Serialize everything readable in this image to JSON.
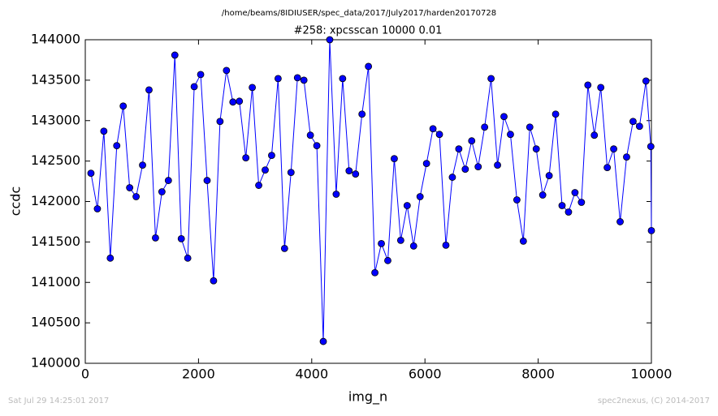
{
  "chart_data": {
    "type": "line",
    "title": "/home/beams/8IDIUSER/spec_data/2017/July2017/harden20170728",
    "subtitle": "#258: xpcsscan 10000 0.01",
    "xlabel": "img_n",
    "ylabel": "ccdc",
    "footer_left": "Sat Jul 29 14:25:01 2017",
    "footer_right": "spec2nexus, (C) 2014-2017",
    "xlim": [
      0,
      10000
    ],
    "xticks": [
      0,
      2000,
      4000,
      6000,
      8000,
      10000
    ],
    "ylim": [
      140000,
      144000
    ],
    "yticks": [
      140000,
      140500,
      141000,
      141500,
      142000,
      142500,
      143000,
      143500,
      144000
    ],
    "grid": false,
    "x": [
      100,
      214,
      328,
      442,
      556,
      670,
      784,
      898,
      1012,
      1126,
      1240,
      1354,
      1468,
      1582,
      1696,
      1810,
      1924,
      2038,
      2152,
      2266,
      2380,
      2494,
      2608,
      2722,
      2836,
      2950,
      3064,
      3178,
      3292,
      3406,
      3520,
      3634,
      3748,
      3862,
      3976,
      4090,
      4204,
      4318,
      4432,
      4546,
      4660,
      4774,
      4888,
      5002,
      5116,
      5230,
      5344,
      5458,
      5572,
      5686,
      5800,
      5914,
      6028,
      6142,
      6256,
      6370,
      6484,
      6598,
      6712,
      6826,
      6940,
      7054,
      7168,
      7282,
      7396,
      7510,
      7624,
      7738,
      7852,
      7966,
      8080,
      8194,
      8308,
      8422,
      8536,
      8650,
      8764,
      8878,
      8992,
      9106,
      9220,
      9334,
      9448,
      9562,
      9676,
      9790,
      9904,
      9990,
      10000
    ],
    "series": [
      {
        "name": "ccdc",
        "color": "#0000ff",
        "values": [
          142350,
          141910,
          142870,
          141300,
          142690,
          143180,
          142170,
          142060,
          142450,
          143380,
          141550,
          142120,
          142260,
          143810,
          141540,
          141300,
          143420,
          143570,
          142260,
          141020,
          142990,
          143620,
          143230,
          143240,
          142540,
          143410,
          142200,
          142390,
          142570,
          143520,
          141420,
          142360,
          143530,
          143500,
          142820,
          142690,
          140270,
          144000,
          142090,
          143520,
          142380,
          142340,
          143080,
          143670,
          141120,
          141480,
          141270,
          142530,
          141520,
          141950,
          141450,
          142060,
          142470,
          142900,
          142830,
          141460,
          142300,
          142650,
          142400,
          142750,
          142430,
          142920,
          143520,
          142450,
          143050,
          142830,
          142020,
          141510,
          142920,
          142650,
          142080,
          142320,
          143080,
          141950,
          141870,
          142110,
          141990,
          143440,
          142820,
          143410,
          142420,
          142650,
          141750,
          142550,
          142990,
          142930,
          143490,
          142680,
          141640
        ]
      }
    ]
  }
}
